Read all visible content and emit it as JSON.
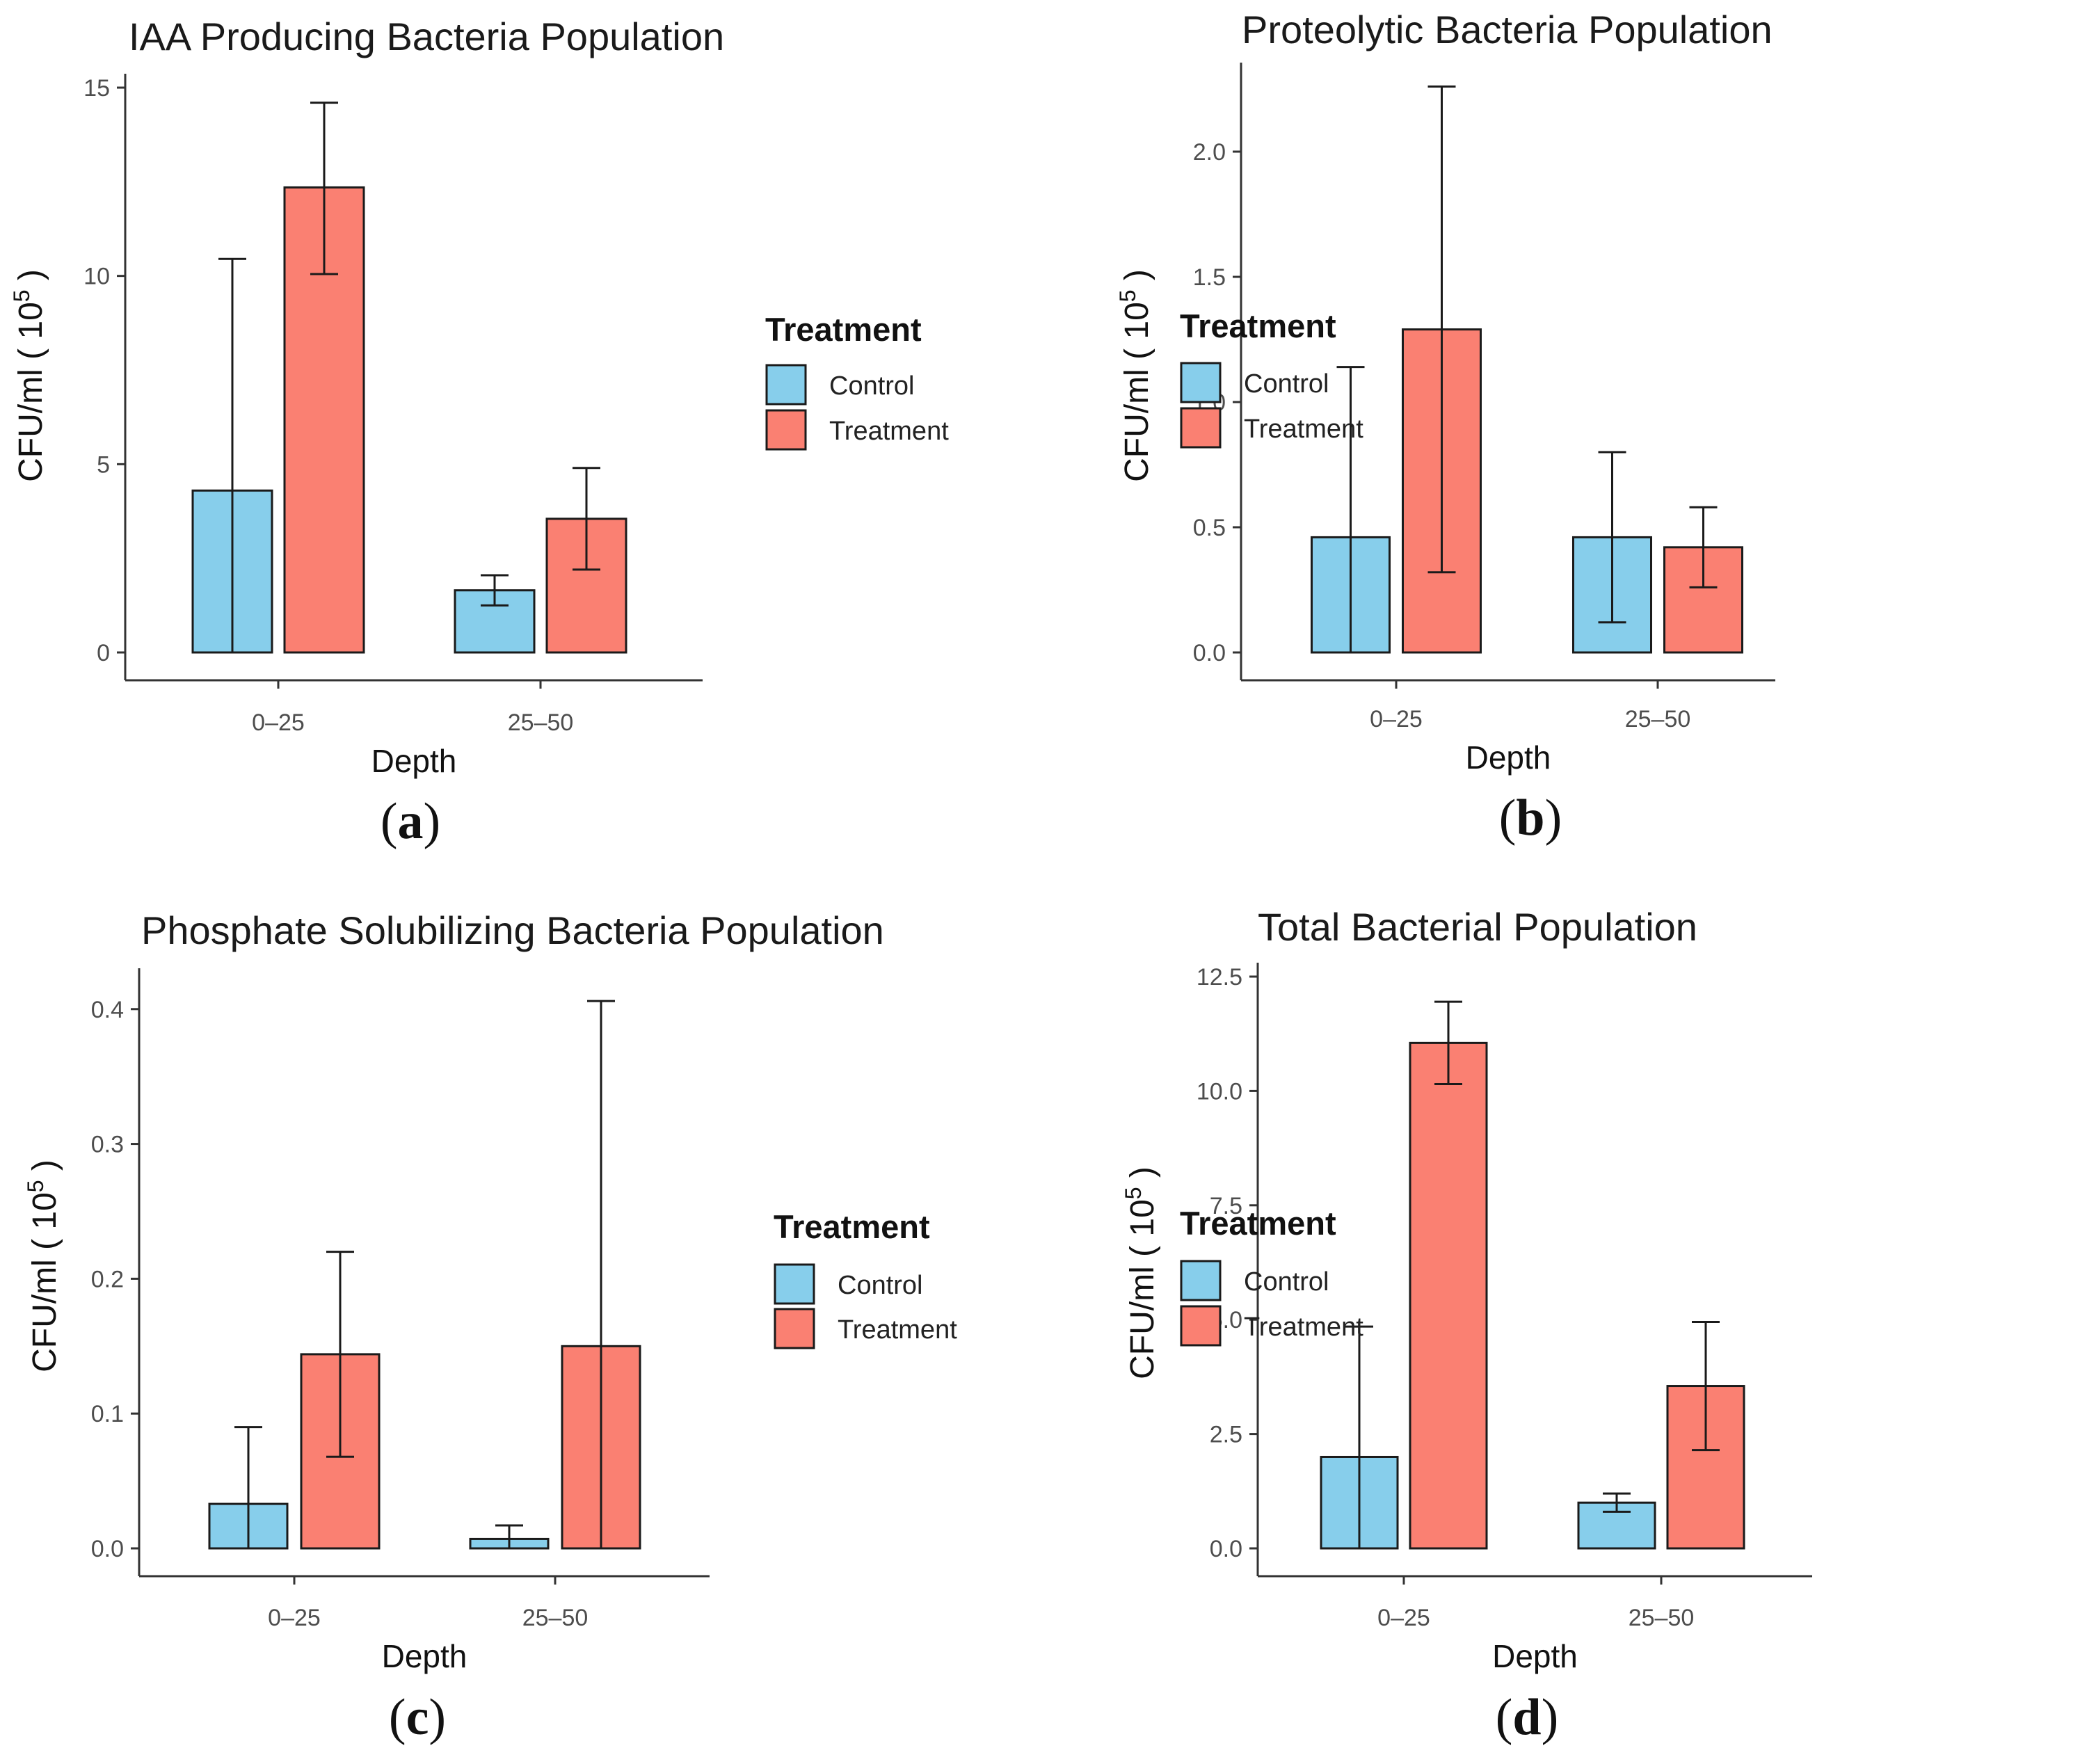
{
  "colors": {
    "control": "#87CEEB",
    "treatment": "#FA8072"
  },
  "legend": {
    "title": "Treatment",
    "items": [
      "Control",
      "Treatment"
    ]
  },
  "chart_data": [
    {
      "type": "bar",
      "panel": "a",
      "title": "IAA Producing Bacteria Population",
      "xlabel": "Depth",
      "ylabel": "CFU/ml ( 10",
      "ylabel_sup": "5",
      "ylabel_end": " )",
      "categories": [
        "0–25",
        "25–50"
      ],
      "ylim": [
        0,
        15
      ],
      "yticks": [
        0,
        5,
        10,
        15
      ],
      "ytick_labels": [
        "0",
        "5",
        "10",
        "15"
      ],
      "series": [
        {
          "name": "Control",
          "values": [
            4.3,
            1.65
          ],
          "err_low": [
            0,
            1.25
          ],
          "err_high": [
            10.45,
            2.05
          ]
        },
        {
          "name": "Treatment",
          "values": [
            12.35,
            3.55
          ],
          "err_low": [
            10.05,
            2.2
          ],
          "err_high": [
            14.6,
            4.9
          ]
        }
      ]
    },
    {
      "type": "bar",
      "panel": "b",
      "title": "Proteolytic Bacteria Population",
      "xlabel": "Depth",
      "ylabel": "CFU/ml ( 10",
      "ylabel_sup": "5",
      "ylabel_end": " )",
      "categories": [
        "0–25",
        "25–50"
      ],
      "ylim": [
        0,
        2.3
      ],
      "yticks": [
        0,
        0.5,
        1.0,
        1.5,
        2.0
      ],
      "ytick_labels": [
        "0.0",
        "0.5",
        "1.0",
        "1.5",
        "2.0"
      ],
      "series": [
        {
          "name": "Control",
          "values": [
            0.46,
            0.46
          ],
          "err_low": [
            0,
            0.12
          ],
          "err_high": [
            1.14,
            0.8
          ]
        },
        {
          "name": "Treatment",
          "values": [
            1.29,
            0.42
          ],
          "err_low": [
            0.32,
            0.26
          ],
          "err_high": [
            2.26,
            0.58
          ]
        }
      ]
    },
    {
      "type": "bar",
      "panel": "c",
      "title": "Phosphate Solubilizing Bacteria Population",
      "xlabel": "Depth",
      "ylabel": "CFU/ml ( 10",
      "ylabel_sup": "5",
      "ylabel_end": " )",
      "categories": [
        "0–25",
        "25–50"
      ],
      "ylim": [
        0,
        0.42
      ],
      "yticks": [
        0,
        0.1,
        0.2,
        0.3,
        0.4
      ],
      "ytick_labels": [
        "0.0",
        "0.1",
        "0.2",
        "0.3",
        "0.4"
      ],
      "series": [
        {
          "name": "Control",
          "values": [
            0.033,
            0.007
          ],
          "err_low": [
            0,
            0
          ],
          "err_high": [
            0.09,
            0.017
          ]
        },
        {
          "name": "Treatment",
          "values": [
            0.144,
            0.15
          ],
          "err_low": [
            0.068,
            0
          ],
          "err_high": [
            0.22,
            0.406
          ]
        }
      ]
    },
    {
      "type": "bar",
      "panel": "d",
      "title": "Total Bacterial Population",
      "xlabel": "Depth",
      "ylabel": "CFU/ml ( 10",
      "ylabel_sup": "5",
      "ylabel_end": " )",
      "categories": [
        "0–25",
        "25–50"
      ],
      "ylim": [
        0,
        12.5
      ],
      "yticks": [
        0,
        2.5,
        5.0,
        7.5,
        10.0,
        12.5
      ],
      "ytick_labels": [
        "0.0",
        "2.5",
        "5.0",
        "7.5",
        "10.0",
        "12.5"
      ],
      "series": [
        {
          "name": "Control",
          "values": [
            2.0,
            1.0
          ],
          "err_low": [
            0,
            0.8
          ],
          "err_high": [
            4.85,
            1.2
          ]
        },
        {
          "name": "Treatment",
          "values": [
            11.05,
            3.55
          ],
          "err_low": [
            10.15,
            2.15
          ],
          "err_high": [
            11.95,
            4.95
          ]
        }
      ]
    }
  ]
}
